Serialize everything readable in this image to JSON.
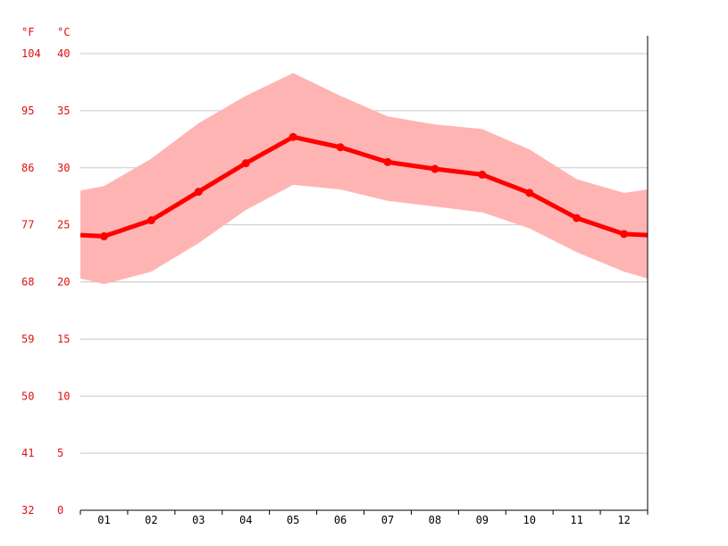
{
  "colors": {
    "axis_text": "#dd1111",
    "band": "#ffb4b4",
    "line": "#ff0000",
    "grid": "#c8c8c8",
    "axis_line": "#000000"
  },
  "chart_data": {
    "type": "line",
    "units": {
      "fahrenheit": "°F",
      "celsius": "°C"
    },
    "categories": [
      "01",
      "02",
      "03",
      "04",
      "05",
      "06",
      "07",
      "08",
      "09",
      "10",
      "11",
      "12"
    ],
    "y_ticks_c": [
      "0",
      "5",
      "10",
      "15",
      "20",
      "25",
      "30",
      "35",
      "40"
    ],
    "y_ticks_f": [
      "32",
      "41",
      "50",
      "59",
      "68",
      "77",
      "86",
      "95",
      "104"
    ],
    "ylim": [
      0,
      40
    ],
    "grid": true,
    "series": [
      {
        "values": [
          24.0,
          25.4,
          27.9,
          30.4,
          32.7,
          31.8,
          30.5,
          29.9,
          29.4,
          27.8,
          25.6,
          24.2
        ]
      }
    ],
    "band_upper": [
      28.4,
      30.8,
      33.9,
      36.3,
      38.3,
      36.3,
      34.5,
      33.8,
      33.4,
      31.6,
      29.0,
      27.8
    ],
    "band_lower": [
      19.8,
      20.9,
      23.4,
      26.3,
      28.5,
      28.1,
      27.1,
      26.6,
      26.1,
      24.7,
      22.6,
      20.9
    ],
    "band_edge_left": [
      28.0,
      20.3,
      24.1
    ],
    "band_edge_right": [
      28.1,
      20.3,
      24.1
    ]
  }
}
